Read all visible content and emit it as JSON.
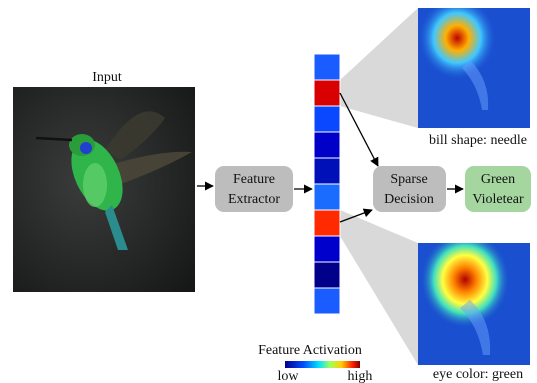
{
  "input": {
    "label": "Input"
  },
  "nodes": {
    "feature_extractor": {
      "lines": [
        "Feature",
        "Extractor"
      ]
    },
    "sparse_decision": {
      "lines": [
        "Sparse",
        "Decision"
      ]
    },
    "output": {
      "lines": [
        "Green",
        "Violetear"
      ]
    }
  },
  "concepts": [
    {
      "label": "bill shape: needle"
    },
    {
      "label": "eye color: green"
    }
  ],
  "colorbar": {
    "title": "Feature Activation",
    "low": "low",
    "high": "high"
  }
}
